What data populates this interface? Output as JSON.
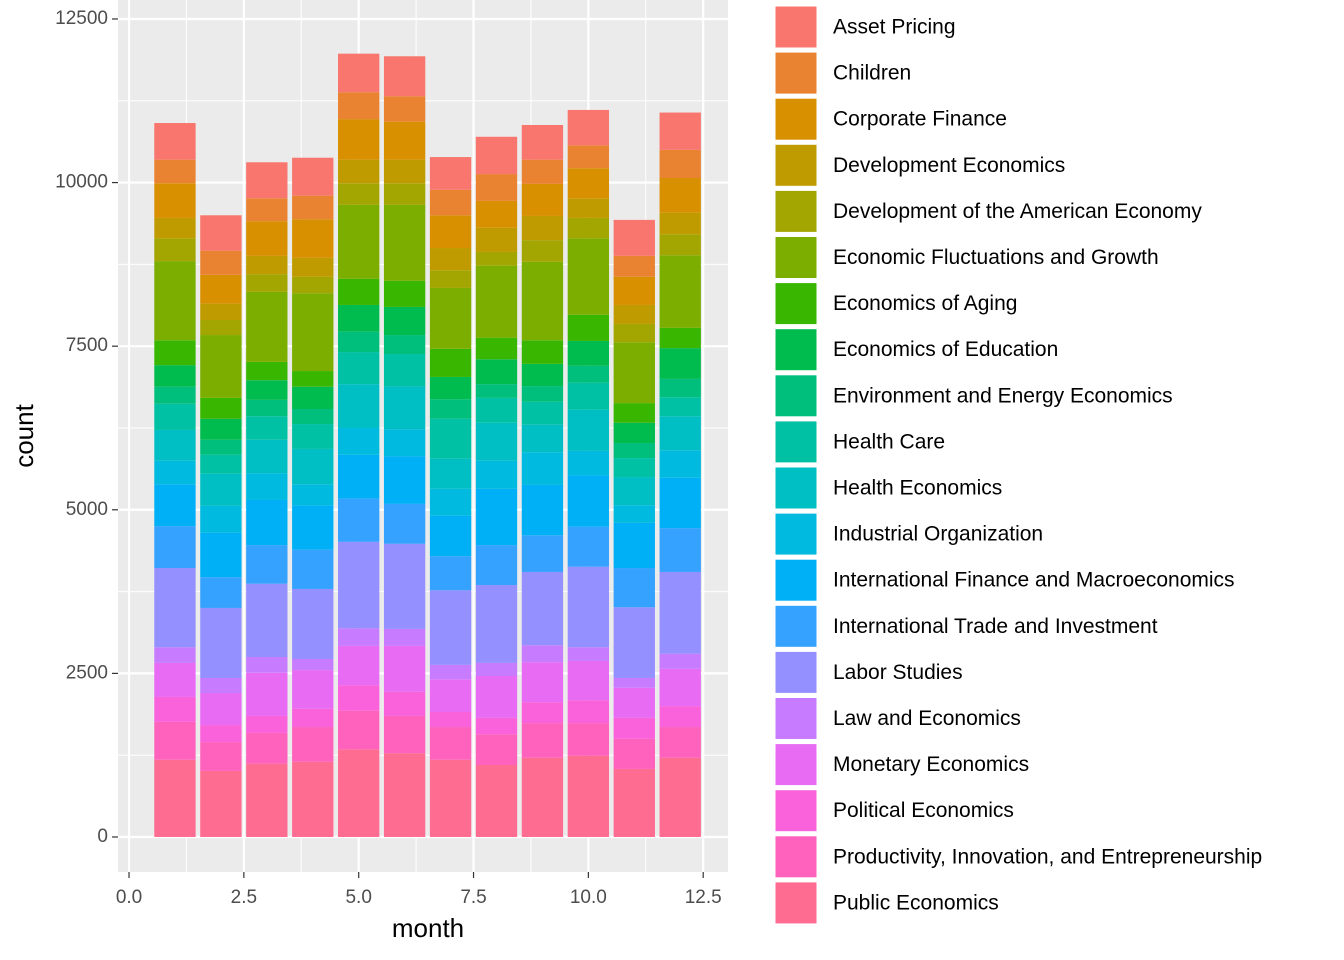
{
  "chart_data": {
    "type": "stacked_bar",
    "x_label": "month",
    "y_label": "count",
    "x": [
      1,
      2,
      3,
      4,
      5,
      6,
      7,
      8,
      9,
      10,
      11,
      12
    ],
    "xlim": [
      -0.24,
      13.04
    ],
    "ylim": [
      -535,
      12790
    ],
    "xticks": [
      {
        "value": 0,
        "label": "0.0"
      },
      2.5,
      {
        "value": 5,
        "label": "5.0"
      },
      7.5,
      {
        "value": 10,
        "label": "10.0"
      },
      12.5
    ],
    "yticks": [
      0,
      2500,
      5000,
      7500,
      10000,
      12500
    ],
    "grid": true,
    "series": [
      {
        "name": "Asset Pricing",
        "color": "#F8766D",
        "values": [
          560,
          540,
          550,
          580,
          590,
          610,
          500,
          570,
          530,
          540,
          550,
          570
        ]
      },
      {
        "name": "Children",
        "color": "#EA8331",
        "values": [
          360,
          370,
          350,
          360,
          410,
          390,
          390,
          410,
          370,
          350,
          320,
          430
        ]
      },
      {
        "name": "Corporate Finance",
        "color": "#D89000",
        "values": [
          530,
          440,
          530,
          590,
          620,
          580,
          500,
          410,
          490,
          460,
          430,
          530
        ]
      },
      {
        "name": "Development Economics",
        "color": "#C09B00",
        "values": [
          310,
          250,
          280,
          290,
          360,
          360,
          340,
          370,
          370,
          300,
          290,
          330
        ]
      },
      {
        "name": "Development of the American Economy",
        "color": "#A3A500",
        "values": [
          350,
          230,
          270,
          250,
          330,
          330,
          270,
          210,
          330,
          310,
          280,
          320
        ]
      },
      {
        "name": "Economic Fluctuations and Growth",
        "color": "#7CAE00",
        "values": [
          1210,
          960,
          1070,
          1190,
          1130,
          1160,
          930,
          1100,
          1200,
          1170,
          930,
          1110
        ]
      },
      {
        "name": "Economics of Aging",
        "color": "#39B600",
        "values": [
          380,
          320,
          280,
          240,
          400,
          400,
          430,
          330,
          360,
          400,
          300,
          310
        ]
      },
      {
        "name": "Economics of Education",
        "color": "#00BB4E",
        "values": [
          330,
          320,
          300,
          340,
          410,
          430,
          340,
          380,
          340,
          380,
          310,
          470
        ]
      },
      {
        "name": "Environment and Energy Economics",
        "color": "#00BF7D",
        "values": [
          260,
          230,
          250,
          230,
          310,
          290,
          300,
          210,
          240,
          260,
          230,
          280
        ]
      },
      {
        "name": "Health Care",
        "color": "#00C1A3",
        "values": [
          400,
          290,
          360,
          380,
          490,
          490,
          610,
          380,
          350,
          410,
          290,
          290
        ]
      },
      {
        "name": "Health Economics",
        "color": "#00BFC4",
        "values": [
          470,
          490,
          510,
          540,
          670,
          660,
          460,
          580,
          420,
          630,
          430,
          520
        ]
      },
      {
        "name": "Industrial Organization",
        "color": "#00BAE0",
        "values": [
          360,
          410,
          410,
          320,
          410,
          410,
          410,
          430,
          500,
          370,
          270,
          420
        ]
      },
      {
        "name": "International Finance and Macroeconomics",
        "color": "#00B0F6",
        "values": [
          640,
          680,
          690,
          680,
          670,
          730,
          620,
          860,
          770,
          790,
          690,
          770
        ]
      },
      {
        "name": "International Trade and Investment",
        "color": "#35A2FF",
        "values": [
          640,
          470,
          590,
          600,
          660,
          610,
          520,
          610,
          560,
          610,
          600,
          670
        ]
      },
      {
        "name": "Labor Studies",
        "color": "#9590FF",
        "values": [
          1210,
          1070,
          1120,
          1070,
          1320,
          1300,
          1140,
          1190,
          1120,
          1230,
          1080,
          1250
        ]
      },
      {
        "name": "Law and Economics",
        "color": "#C77CFF",
        "values": [
          240,
          230,
          240,
          170,
          270,
          260,
          220,
          200,
          260,
          210,
          150,
          230
        ]
      },
      {
        "name": "Monetary Economics",
        "color": "#E76BF3",
        "values": [
          520,
          490,
          660,
          590,
          600,
          700,
          500,
          640,
          610,
          600,
          460,
          570
        ]
      },
      {
        "name": "Political Economics",
        "color": "#FA62DB",
        "values": [
          380,
          260,
          260,
          280,
          390,
          370,
          230,
          250,
          320,
          350,
          320,
          320
        ]
      },
      {
        "name": "Productivity, Innovation, and Entrepreneurship",
        "color": "#FF62BC",
        "values": [
          580,
          440,
          470,
          530,
          590,
          570,
          500,
          470,
          530,
          500,
          460,
          470
        ]
      },
      {
        "name": "Public Economics",
        "color": "#FF6C91",
        "values": [
          1180,
          1010,
          1120,
          1150,
          1340,
          1280,
          1180,
          1100,
          1210,
          1240,
          1040,
          1210
        ]
      }
    ]
  }
}
